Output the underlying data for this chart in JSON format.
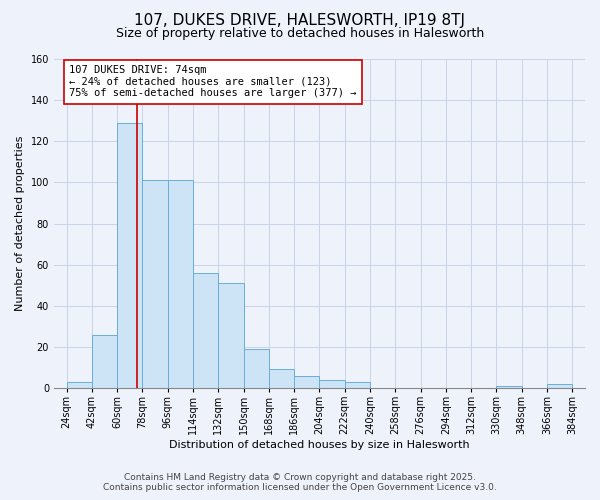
{
  "title": "107, DUKES DRIVE, HALESWORTH, IP19 8TJ",
  "subtitle": "Size of property relative to detached houses in Halesworth",
  "xlabel": "Distribution of detached houses by size in Halesworth",
  "ylabel": "Number of detached properties",
  "bar_values": [
    3,
    26,
    129,
    101,
    101,
    56,
    51,
    19,
    9,
    6,
    4,
    3,
    0,
    0,
    0,
    0,
    0,
    1,
    0,
    2
  ],
  "bin_edges": [
    24,
    42,
    60,
    78,
    96,
    114,
    132,
    150,
    168,
    186,
    204,
    222,
    240,
    258,
    276,
    294,
    312,
    330,
    348,
    366,
    384
  ],
  "bin_labels": [
    "24sqm",
    "42sqm",
    "60sqm",
    "78sqm",
    "96sqm",
    "114sqm",
    "132sqm",
    "150sqm",
    "168sqm",
    "186sqm",
    "204sqm",
    "222sqm",
    "240sqm",
    "258sqm",
    "276sqm",
    "294sqm",
    "312sqm",
    "330sqm",
    "348sqm",
    "366sqm",
    "384sqm"
  ],
  "bar_color": "#cce4f5",
  "bar_edge_color": "#6aaed6",
  "vline_x": 74,
  "vline_color": "#cc0000",
  "annotation_text": "107 DUKES DRIVE: 74sqm\n← 24% of detached houses are smaller (123)\n75% of semi-detached houses are larger (377) →",
  "annotation_box_color": "#ffffff",
  "annotation_box_edge": "#cc0000",
  "ylim": [
    0,
    160
  ],
  "yticks": [
    0,
    20,
    40,
    60,
    80,
    100,
    120,
    140,
    160
  ],
  "footer_line1": "Contains HM Land Registry data © Crown copyright and database right 2025.",
  "footer_line2": "Contains public sector information licensed under the Open Government Licence v3.0.",
  "background_color": "#eef2fb",
  "grid_color": "#c8d4e8",
  "title_fontsize": 11,
  "subtitle_fontsize": 9,
  "axis_label_fontsize": 8,
  "tick_fontsize": 7,
  "annotation_fontsize": 7.5,
  "footer_fontsize": 6.5
}
